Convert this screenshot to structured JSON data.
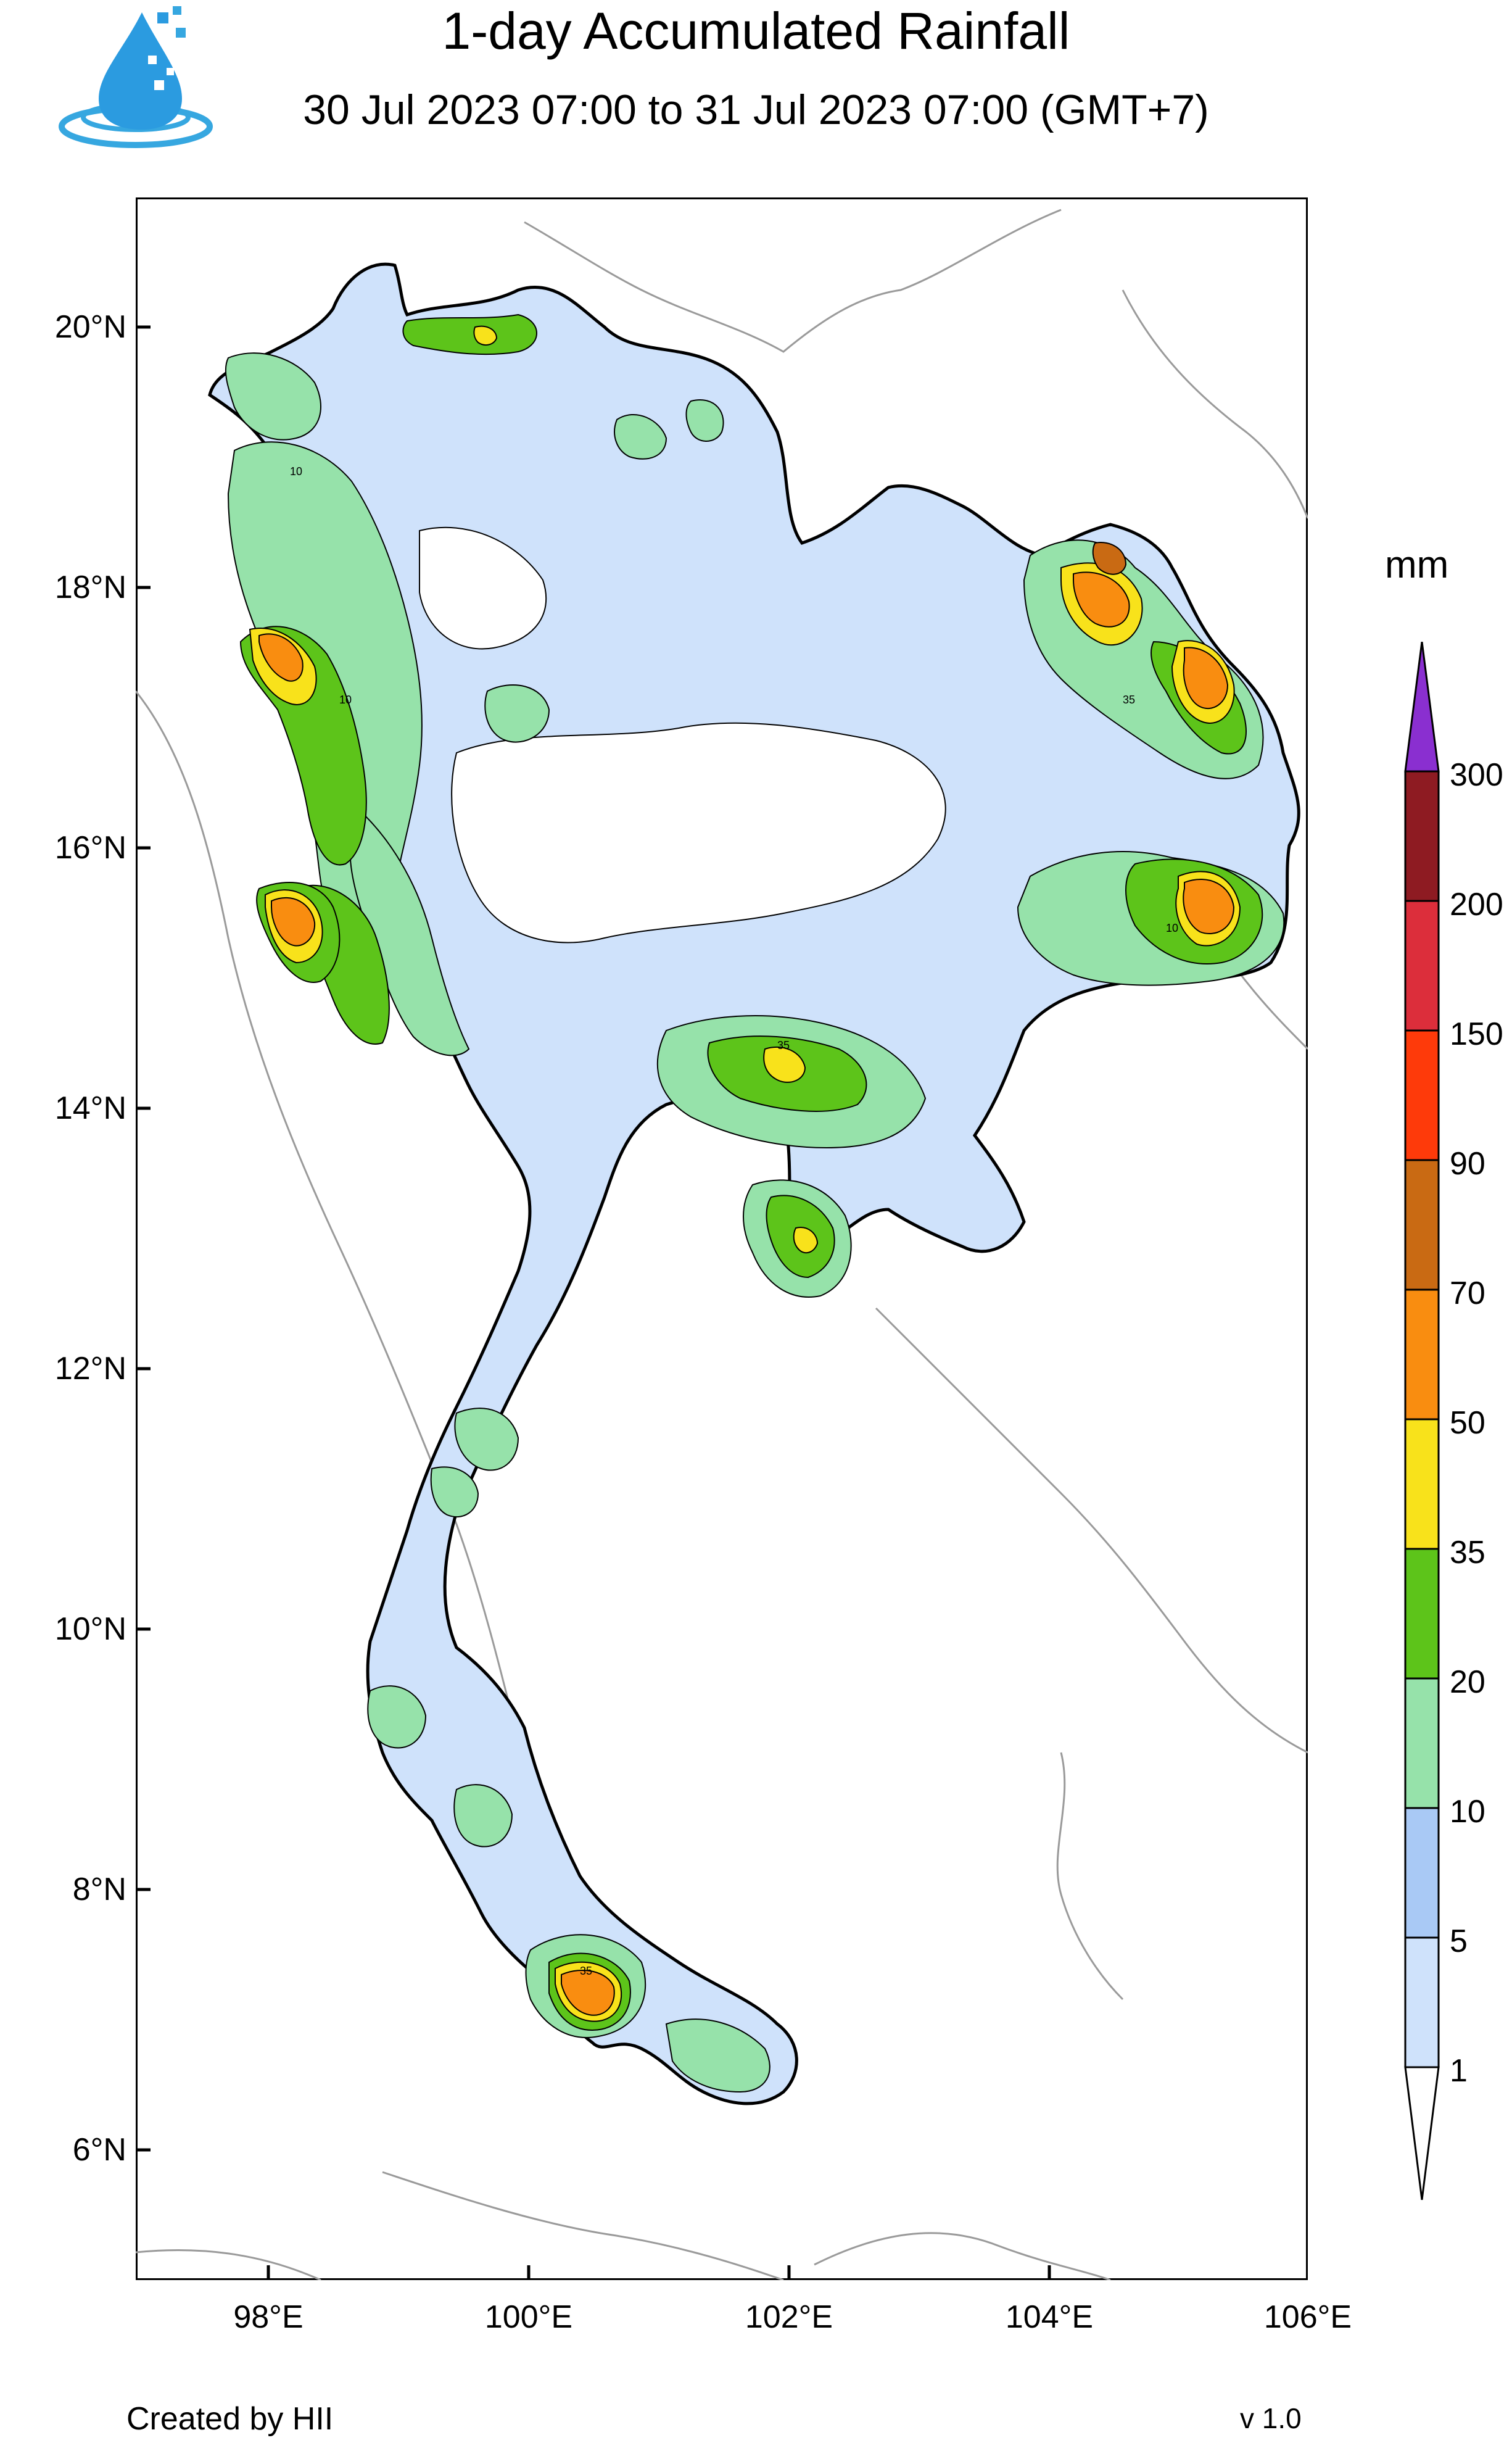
{
  "header": {
    "title": "1-day Accumulated Rainfall",
    "subtitle": "30 Jul 2023 07:00 to 31 Jul 2023 07:00 (GMT+7)"
  },
  "axes": {
    "lat_labels": [
      "20°N",
      "18°N",
      "16°N",
      "14°N",
      "12°N",
      "10°N",
      "8°N",
      "6°N"
    ],
    "lon_labels": [
      "98°E",
      "100°E",
      "102°E",
      "104°E",
      "106°E"
    ]
  },
  "legend": {
    "unit": "mm",
    "levels": [
      "1",
      "5",
      "10",
      "20",
      "35",
      "50",
      "70",
      "90",
      "150",
      "200",
      "300"
    ],
    "colors": [
      "#ffffff",
      "#cfe2fb",
      "#a9c9f5",
      "#96e2aa",
      "#5dc41a",
      "#f8e21b",
      "#f98d10",
      "#c96a13",
      "#fe3a0a",
      "#dc2e3b",
      "#8e1b22",
      "#8a2fd0"
    ]
  },
  "contour_labels": [
    "10",
    "35"
  ],
  "footer": {
    "credit": "Created by HII",
    "version": "v 1.0"
  }
}
